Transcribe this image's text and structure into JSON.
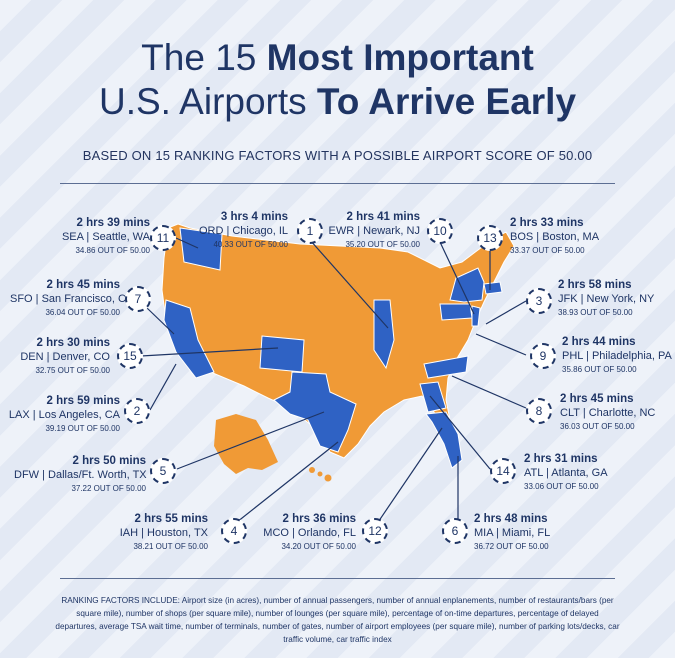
{
  "title": {
    "line1_pre": "The 15 ",
    "line1_bold": "Most Important",
    "line2_pre": "U.S. Airports ",
    "line2_bold": "To Arrive Early"
  },
  "subtitle": "BASED ON 15 RANKING FACTORS WITH A POSSIBLE AIRPORT SCORE OF 50.00",
  "colors": {
    "highlight": "#2f62c4",
    "base": "#f09a36",
    "ink": "#1f3565"
  },
  "airports": [
    {
      "rank": "11",
      "time": "2 hrs 39 mins",
      "code": "SEA | Seattle, WA",
      "score": "34.86 OUT OF 50.00"
    },
    {
      "rank": "1",
      "time": "3 hrs 4 mins",
      "code": "ORD | Chicago, IL",
      "score": "40.33 OUT OF 50.00"
    },
    {
      "rank": "10",
      "time": "2 hrs 41 mins",
      "code": "EWR | Newark, NJ",
      "score": "35.20 OUT OF 50.00"
    },
    {
      "rank": "13",
      "time": "2 hrs 33 mins",
      "code": "BOS | Boston, MA",
      "score": "33.37 OUT OF 50.00"
    },
    {
      "rank": "7",
      "time": "2 hrs 45 mins",
      "code": "SFO | San Francisco, CA",
      "score": "36.04 OUT OF 50.00"
    },
    {
      "rank": "3",
      "time": "2 hrs 58 mins",
      "code": "JFK | New York, NY",
      "score": "38.93 OUT OF 50.00"
    },
    {
      "rank": "15",
      "time": "2 hrs 30 mins",
      "code": "DEN | Denver, CO",
      "score": "32.75 OUT OF 50.00"
    },
    {
      "rank": "9",
      "time": "2 hrs 44 mins",
      "code": "PHL | Philadelphia, PA",
      "score": "35.86 OUT OF 50.00"
    },
    {
      "rank": "2",
      "time": "2 hrs 59 mins",
      "code": "LAX | Los Angeles, CA",
      "score": "39.19 OUT OF 50.00"
    },
    {
      "rank": "8",
      "time": "2 hrs 45 mins",
      "code": "CLT | Charlotte, NC",
      "score": "36.03 OUT OF 50.00"
    },
    {
      "rank": "5",
      "time": "2 hrs 50 mins",
      "code": "DFW | Dallas/Ft. Worth, TX",
      "score": "37.22 OUT OF 50.00"
    },
    {
      "rank": "14",
      "time": "2 hrs 31 mins",
      "code": "ATL | Atlanta, GA",
      "score": "33.06 OUT OF 50.00"
    },
    {
      "rank": "4",
      "time": "2 hrs 55 mins",
      "code": "IAH | Houston, TX",
      "score": "38.21 OUT OF 50.00"
    },
    {
      "rank": "12",
      "time": "2 hrs 36 mins",
      "code": "MCO | Orlando, FL",
      "score": "34.20 OUT OF 50.00"
    },
    {
      "rank": "6",
      "time": "2 hrs 48 mins",
      "code": "MIA | Miami, FL",
      "score": "36.72 OUT OF 50.00"
    }
  ],
  "footer": {
    "label": "RANKING FACTORS INCLUDE:",
    "text": "Airport size (in acres), number of annual passengers, number of annual enplanements, number of restaurants/bars (per square mile), number of shops (per square mile), number of lounges (per square mile), percentage of on-time departures, percentage of delayed departures, average TSA wait time, number of terminals, number of gates, number of airport employees (per square mile), number of parking lots/decks, car traffic volume, car traffic index"
  }
}
